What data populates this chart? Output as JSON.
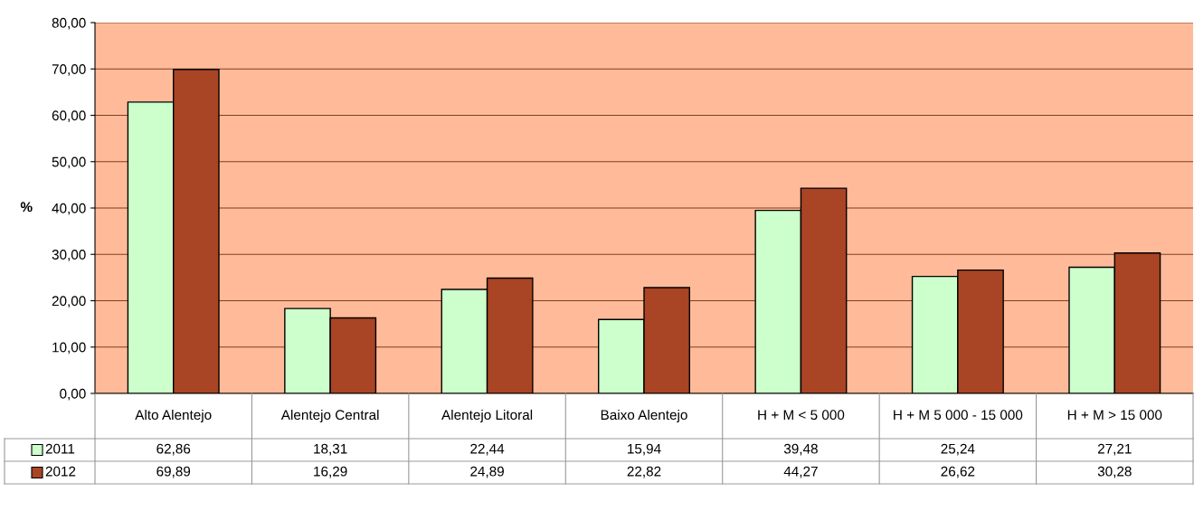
{
  "chart_data": {
    "type": "bar",
    "ylabel": "%",
    "categories": [
      "Alto Alentejo",
      "Alentejo Central",
      "Alentejo Litoral",
      "Baixo Alentejo",
      "H + M < 5 000",
      "H + M 5 000 - 15 000",
      "H + M > 15 000"
    ],
    "series": [
      {
        "name": "2011",
        "color": "#ccffcc",
        "values": [
          62.86,
          18.31,
          22.44,
          15.94,
          39.48,
          25.24,
          27.21
        ],
        "value_labels": [
          "62,86",
          "18,31",
          "22,44",
          "15,94",
          "39,48",
          "25,24",
          "27,21"
        ]
      },
      {
        "name": "2012",
        "color": "#a94424",
        "values": [
          69.89,
          16.29,
          24.89,
          22.82,
          44.27,
          26.62,
          30.28
        ],
        "value_labels": [
          "69,89",
          "16,29",
          "24,89",
          "22,82",
          "44,27",
          "26,62",
          "30,28"
        ]
      }
    ],
    "ylim": [
      0,
      80
    ],
    "yticks": [
      {
        "value": 0,
        "label": "0,00"
      },
      {
        "value": 10,
        "label": "10,00"
      },
      {
        "value": 20,
        "label": "20,00"
      },
      {
        "value": 30,
        "label": "30,00"
      },
      {
        "value": 40,
        "label": "40,00"
      },
      {
        "value": 50,
        "label": "50,00"
      },
      {
        "value": 60,
        "label": "60,00"
      },
      {
        "value": 70,
        "label": "70,00"
      },
      {
        "value": 80,
        "label": "80,00"
      }
    ],
    "grid": "y",
    "legend": "bottom left"
  }
}
